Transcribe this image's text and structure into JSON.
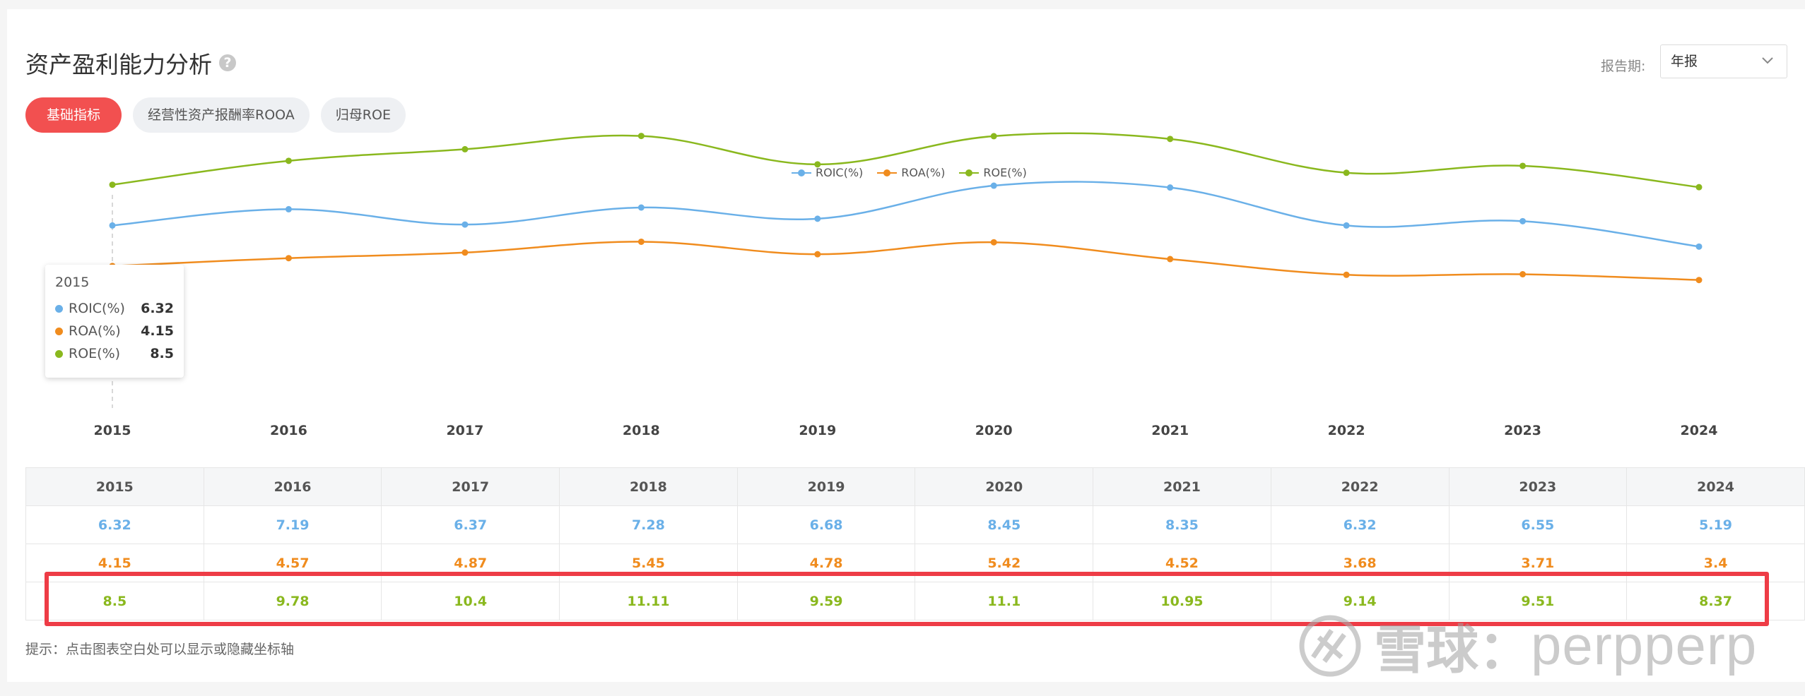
{
  "header": {
    "title": "资产盈利能力分析",
    "help_icon": "?",
    "period_label": "报告期:",
    "period_value": "年报"
  },
  "tabs": [
    {
      "label": "基础指标",
      "active": true
    },
    {
      "label": "经营性资产报酬率ROOA",
      "active": false
    },
    {
      "label": "归母ROE",
      "active": false
    }
  ],
  "colors": {
    "roic": "#6ab0e8",
    "roa": "#f08c1e",
    "roe": "#8ab81e",
    "accent": "#f25050"
  },
  "chart_data": {
    "type": "line",
    "x": [
      "2015",
      "2016",
      "2017",
      "2018",
      "2019",
      "2020",
      "2021",
      "2022",
      "2023",
      "2024"
    ],
    "series": [
      {
        "name": "ROIC(%)",
        "values": [
          6.32,
          7.19,
          6.37,
          7.28,
          6.68,
          8.45,
          8.35,
          6.32,
          6.55,
          5.19
        ]
      },
      {
        "name": "ROA(%)",
        "values": [
          4.15,
          4.57,
          4.87,
          5.45,
          4.78,
          5.42,
          4.52,
          3.68,
          3.71,
          3.4
        ]
      },
      {
        "name": "ROE(%)",
        "values": [
          8.5,
          9.78,
          10.4,
          11.11,
          9.59,
          11.1,
          10.95,
          9.14,
          9.51,
          8.37
        ]
      }
    ],
    "legend_position": "top-center",
    "grid": false
  },
  "tooltip": {
    "year": "2015",
    "rows": [
      {
        "name": "ROIC(%)",
        "value": "6.32"
      },
      {
        "name": "ROA(%)",
        "value": "4.15"
      },
      {
        "name": "ROE(%)",
        "value": "8.5"
      }
    ]
  },
  "table": {
    "headers": [
      "2015",
      "2016",
      "2017",
      "2018",
      "2019",
      "2020",
      "2021",
      "2022",
      "2023",
      "2024"
    ],
    "roic": [
      "6.32",
      "7.19",
      "6.37",
      "7.28",
      "6.68",
      "8.45",
      "8.35",
      "6.32",
      "6.55",
      "5.19"
    ],
    "roa": [
      "4.15",
      "4.57",
      "4.87",
      "5.45",
      "4.78",
      "5.42",
      "4.52",
      "3.68",
      "3.71",
      "3.4"
    ],
    "roe": [
      "8.5",
      "9.78",
      "10.4",
      "11.11",
      "9.59",
      "11.1",
      "10.95",
      "9.14",
      "9.51",
      "8.37"
    ]
  },
  "hint": "提示：点击图表空白处可以显示或隐藏坐标轴",
  "watermark": {
    "brand": "雪球：",
    "handle": "perpperp"
  }
}
